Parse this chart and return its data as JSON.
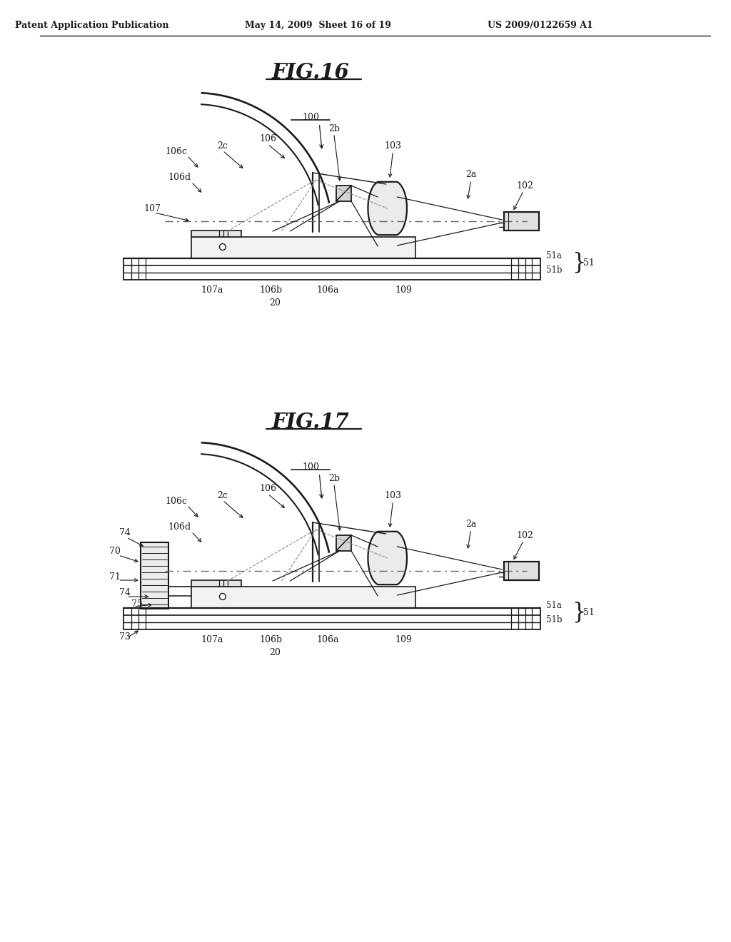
{
  "bg_color": "#ffffff",
  "header_left": "Patent Application Publication",
  "header_mid": "May 14, 2009  Sheet 16 of 19",
  "header_right": "US 2009/0122659 A1",
  "fig16_title": "FIG.16",
  "fig17_title": "FIG.17",
  "line_color": "#1a1a1a",
  "text_color": "#1a1a1a"
}
